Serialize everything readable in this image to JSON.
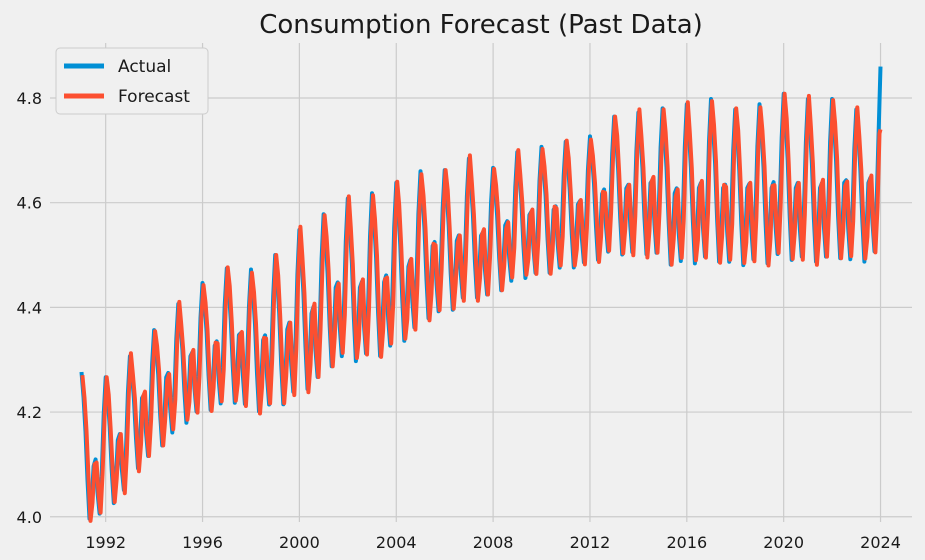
{
  "chart_data": {
    "type": "line",
    "title": "Consumption Forecast (Past Data)",
    "xlabel": "",
    "ylabel": "",
    "xlim": [
      1989.7,
      2025.3
    ],
    "ylim": [
      3.99,
      4.905
    ],
    "x_ticks": [
      1992,
      1996,
      2000,
      2004,
      2008,
      2012,
      2016,
      2020,
      2024
    ],
    "y_ticks": [
      4.0,
      4.2,
      4.4,
      4.6,
      4.8
    ],
    "grid": true,
    "legend_position": "top-left",
    "colors": {
      "Actual": "#008fd5",
      "Forecast": "#fc4f30"
    },
    "anchors": [
      [
        1991.0,
        4.14
      ],
      [
        1991.5,
        4.09
      ],
      [
        1992.0,
        4.13
      ],
      [
        1992.5,
        4.14
      ],
      [
        1993.0,
        4.17
      ],
      [
        1993.5,
        4.22
      ],
      [
        1994.0,
        4.22
      ],
      [
        1994.5,
        4.26
      ],
      [
        1995.0,
        4.27
      ],
      [
        1995.5,
        4.3
      ],
      [
        1996.0,
        4.31
      ],
      [
        1996.5,
        4.32
      ],
      [
        1997.0,
        4.33
      ],
      [
        1997.5,
        4.34
      ],
      [
        1998.0,
        4.32
      ],
      [
        1998.5,
        4.33
      ],
      [
        1999.0,
        4.34
      ],
      [
        1999.5,
        4.35
      ],
      [
        2000.0,
        4.38
      ],
      [
        2000.5,
        4.38
      ],
      [
        2001.0,
        4.41
      ],
      [
        2001.5,
        4.43
      ],
      [
        2002.0,
        4.44
      ],
      [
        2002.5,
        4.43
      ],
      [
        2003.0,
        4.45
      ],
      [
        2003.5,
        4.44
      ],
      [
        2004.0,
        4.47
      ],
      [
        2004.5,
        4.47
      ],
      [
        2005.0,
        4.5
      ],
      [
        2005.5,
        4.51
      ],
      [
        2006.0,
        4.51
      ],
      [
        2006.5,
        4.52
      ],
      [
        2007.0,
        4.54
      ],
      [
        2007.5,
        4.53
      ],
      [
        2008.0,
        4.53
      ],
      [
        2008.5,
        4.55
      ],
      [
        2009.0,
        4.56
      ],
      [
        2009.5,
        4.57
      ],
      [
        2010.0,
        4.57
      ],
      [
        2010.5,
        4.58
      ],
      [
        2011.0,
        4.58
      ],
      [
        2011.5,
        4.59
      ],
      [
        2012.0,
        4.59
      ],
      [
        2012.5,
        4.61
      ],
      [
        2013.0,
        4.62
      ],
      [
        2013.5,
        4.62
      ],
      [
        2014.0,
        4.62
      ],
      [
        2014.5,
        4.63
      ],
      [
        2015.0,
        4.62
      ],
      [
        2015.5,
        4.61
      ],
      [
        2016.0,
        4.62
      ],
      [
        2016.5,
        4.62
      ],
      [
        2017.0,
        4.63
      ],
      [
        2017.5,
        4.62
      ],
      [
        2018.0,
        4.61
      ],
      [
        2018.5,
        4.62
      ],
      [
        2019.0,
        4.62
      ],
      [
        2019.5,
        4.62
      ],
      [
        2020.0,
        4.64
      ],
      [
        2020.5,
        4.62
      ],
      [
        2021.0,
        4.63
      ],
      [
        2021.5,
        4.62
      ],
      [
        2022.0,
        4.63
      ],
      [
        2022.5,
        4.63
      ],
      [
        2023.0,
        4.61
      ],
      [
        2023.5,
        4.63
      ],
      [
        2024.0,
        4.64
      ]
    ],
    "seasonal_amplitude": [
      [
        1991,
        0.13
      ],
      [
        1996,
        0.13
      ],
      [
        2000,
        0.16
      ],
      [
        2004,
        0.16
      ],
      [
        2008,
        0.13
      ],
      [
        2012,
        0.13
      ],
      [
        2016,
        0.16
      ],
      [
        2024,
        0.16
      ]
    ],
    "actual_final": [
      [
        2023.92,
        4.6
      ],
      [
        2024.0,
        4.86
      ]
    ],
    "forecast_final": [
      [
        2023.92,
        4.6
      ],
      [
        2024.0,
        4.74
      ]
    ],
    "series": [
      {
        "name": "Actual"
      },
      {
        "name": "Forecast"
      }
    ]
  }
}
